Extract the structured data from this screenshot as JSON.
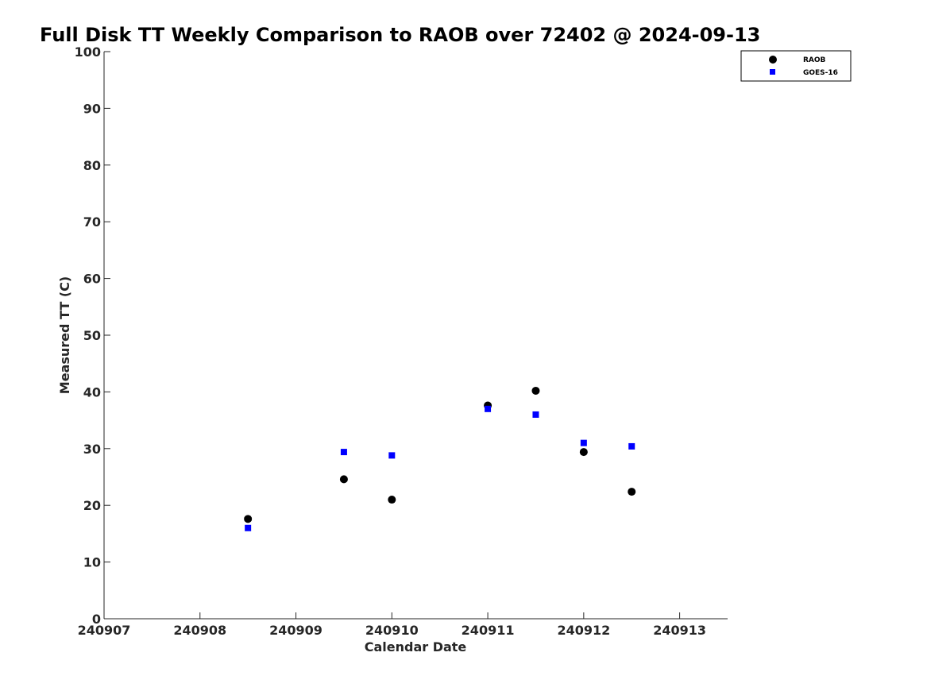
{
  "chart_data": {
    "type": "scatter",
    "title": "Full Disk TT Weekly Comparison to RAOB over 72402 @ 2024-09-13",
    "xlabel": "Calendar Date",
    "ylabel": "Measured TT (C)",
    "xlim": [
      0,
      6.5
    ],
    "x_ticks": [
      0,
      1,
      2,
      3,
      4,
      5,
      6
    ],
    "x_tick_labels": [
      "240907",
      "240908",
      "240909",
      "240910",
      "240911",
      "240912",
      "240913"
    ],
    "ylim": [
      0,
      100
    ],
    "y_ticks": [
      0,
      10,
      20,
      30,
      40,
      50,
      60,
      70,
      80,
      90,
      100
    ],
    "grid": false,
    "legend_position": "top-right",
    "series": [
      {
        "name": "RAOB",
        "marker": "circle",
        "color": "#000000",
        "points": [
          {
            "x": 1.5,
            "y": 17.6
          },
          {
            "x": 2.5,
            "y": 24.6
          },
          {
            "x": 3.0,
            "y": 21.0
          },
          {
            "x": 4.0,
            "y": 37.6
          },
          {
            "x": 4.5,
            "y": 40.2
          },
          {
            "x": 5.0,
            "y": 29.4
          },
          {
            "x": 5.5,
            "y": 22.4
          }
        ]
      },
      {
        "name": "GOES-16",
        "marker": "square",
        "color": "#0000ff",
        "points": [
          {
            "x": 1.5,
            "y": 16.0
          },
          {
            "x": 2.5,
            "y": 29.4
          },
          {
            "x": 3.0,
            "y": 28.8
          },
          {
            "x": 4.0,
            "y": 37.0
          },
          {
            "x": 4.5,
            "y": 36.0
          },
          {
            "x": 5.0,
            "y": 31.0
          },
          {
            "x": 5.5,
            "y": 30.4
          }
        ]
      }
    ]
  }
}
